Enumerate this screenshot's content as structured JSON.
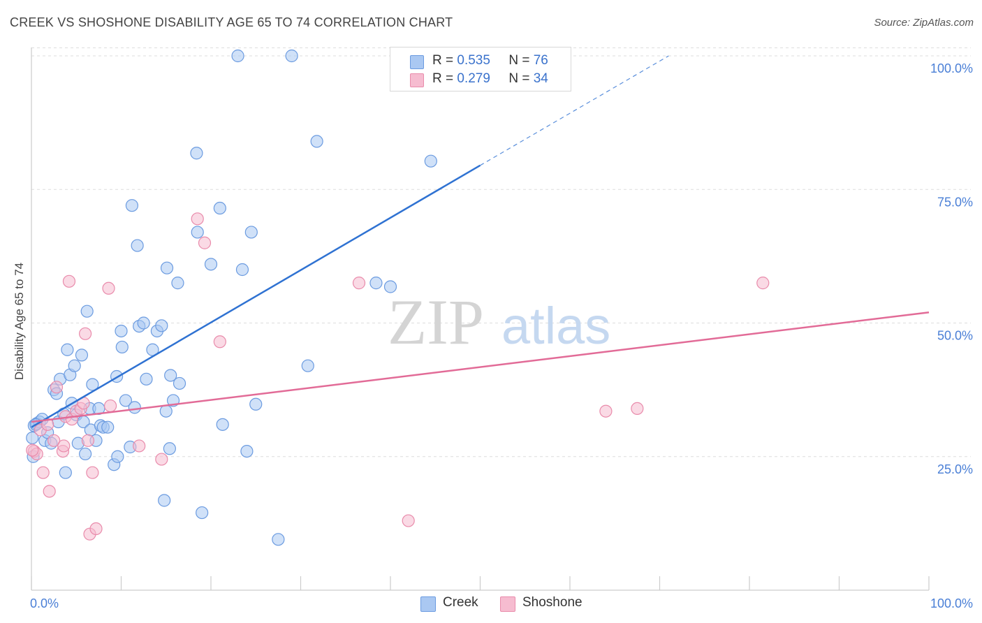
{
  "title": "CREEK VS SHOSHONE DISABILITY AGE 65 TO 74 CORRELATION CHART",
  "source": "Source: ZipAtlas.com",
  "watermark": {
    "zip": "ZIP",
    "atlas": "atlas"
  },
  "colors": {
    "creek_fill": "#aac8f2",
    "creek_stroke": "#6b9be0",
    "creek_line": "#2f72d2",
    "shoshone_fill": "#f6bcd0",
    "shoshone_stroke": "#e98bab",
    "shoshone_line": "#e26b97",
    "tick_text": "#4a7fd6",
    "grid": "#dddddd"
  },
  "legend": {
    "rows": [
      {
        "series": "Creek",
        "r_label": "R =",
        "r_value": "0.535",
        "n_label": "N =",
        "n_value": "76"
      },
      {
        "series": "Shoshone",
        "r_label": "R =",
        "r_value": "0.279",
        "n_label": "N =",
        "n_value": "34"
      }
    ]
  },
  "bottom_legend": [
    {
      "label": "Creek"
    },
    {
      "label": "Shoshone"
    }
  ],
  "chart_data": {
    "type": "scatter",
    "title": "CREEK VS SHOSHONE DISABILITY AGE 65 TO 74 CORRELATION CHART",
    "xlabel": "",
    "ylabel": "Disability Age 65 to 74",
    "xlim": [
      0,
      100
    ],
    "ylim": [
      0,
      102
    ],
    "x_tick_labels": [
      {
        "value": 0,
        "label": "0.0%"
      },
      {
        "value": 100,
        "label": "100.0%"
      }
    ],
    "y_tick_labels": [
      {
        "value": 25,
        "label": "25.0%"
      },
      {
        "value": 50,
        "label": "50.0%"
      },
      {
        "value": 75,
        "label": "75.0%"
      },
      {
        "value": 100,
        "label": "100.0%"
      }
    ],
    "grid": true,
    "series": [
      {
        "name": "Creek",
        "r": 0.535,
        "n": 76,
        "trend": {
          "x0": 0,
          "y0": 30.5,
          "x1": 50,
          "y1": 79.5,
          "dash_x1": 71,
          "dash_y1": 100
        },
        "points": [
          [
            0.3,
            30.8
          ],
          [
            0.6,
            31.2
          ],
          [
            0.9,
            31.5
          ],
          [
            1.2,
            32.0
          ],
          [
            1.5,
            28.0
          ],
          [
            1.8,
            29.5
          ],
          [
            2.2,
            27.5
          ],
          [
            2.5,
            37.5
          ],
          [
            2.8,
            36.8
          ],
          [
            3.0,
            31.5
          ],
          [
            3.2,
            39.5
          ],
          [
            3.6,
            33.0
          ],
          [
            3.8,
            22.0
          ],
          [
            4.0,
            45.0
          ],
          [
            4.3,
            40.3
          ],
          [
            4.5,
            35.0
          ],
          [
            4.8,
            42.0
          ],
          [
            5.0,
            32.8
          ],
          [
            5.2,
            27.5
          ],
          [
            5.6,
            44.0
          ],
          [
            5.8,
            31.5
          ],
          [
            6.0,
            25.5
          ],
          [
            6.2,
            52.2
          ],
          [
            6.5,
            34.0
          ],
          [
            6.6,
            30.0
          ],
          [
            6.8,
            38.5
          ],
          [
            7.2,
            28.0
          ],
          [
            7.5,
            34.0
          ],
          [
            7.7,
            30.8
          ],
          [
            8.0,
            30.5
          ],
          [
            8.5,
            30.5
          ],
          [
            9.2,
            23.5
          ],
          [
            9.5,
            40.0
          ],
          [
            9.6,
            25.0
          ],
          [
            10.0,
            48.5
          ],
          [
            10.1,
            45.5
          ],
          [
            10.5,
            35.5
          ],
          [
            11.0,
            26.8
          ],
          [
            11.2,
            72.0
          ],
          [
            11.5,
            34.2
          ],
          [
            11.8,
            64.5
          ],
          [
            12.0,
            49.4
          ],
          [
            12.5,
            50.0
          ],
          [
            12.8,
            39.5
          ],
          [
            13.5,
            45.0
          ],
          [
            14.0,
            48.5
          ],
          [
            14.5,
            49.5
          ],
          [
            14.8,
            16.8
          ],
          [
            15.0,
            33.5
          ],
          [
            15.1,
            60.3
          ],
          [
            15.4,
            26.5
          ],
          [
            15.5,
            40.2
          ],
          [
            15.8,
            35.5
          ],
          [
            16.3,
            57.5
          ],
          [
            16.5,
            38.7
          ],
          [
            18.4,
            81.8
          ],
          [
            18.5,
            67.0
          ],
          [
            19.0,
            14.5
          ],
          [
            20.0,
            61.0
          ],
          [
            21.0,
            71.5
          ],
          [
            21.3,
            31.0
          ],
          [
            23.0,
            100.0
          ],
          [
            23.5,
            60.0
          ],
          [
            24.0,
            26.0
          ],
          [
            24.5,
            67.0
          ],
          [
            25.0,
            34.8
          ],
          [
            27.5,
            9.5
          ],
          [
            29.0,
            100.0
          ],
          [
            30.8,
            42.0
          ],
          [
            31.8,
            84.0
          ],
          [
            38.4,
            57.5
          ],
          [
            40.0,
            56.8
          ],
          [
            44.5,
            80.3
          ],
          [
            0.1,
            28.5
          ],
          [
            0.2,
            25.0
          ],
          [
            0.5,
            31.0
          ]
        ]
      },
      {
        "name": "Shoshone",
        "r": 0.279,
        "n": 34,
        "trend": {
          "x0": 0,
          "y0": 31.5,
          "x1": 100,
          "y1": 52.0
        },
        "points": [
          [
            0.3,
            26.0
          ],
          [
            0.6,
            25.5
          ],
          [
            1.0,
            30.0
          ],
          [
            1.3,
            22.0
          ],
          [
            1.8,
            31.0
          ],
          [
            2.0,
            18.5
          ],
          [
            2.5,
            28.0
          ],
          [
            2.8,
            38.0
          ],
          [
            3.5,
            26.0
          ],
          [
            3.6,
            27.0
          ],
          [
            3.8,
            32.5
          ],
          [
            4.2,
            57.8
          ],
          [
            4.5,
            32.0
          ],
          [
            5.0,
            33.5
          ],
          [
            5.5,
            34.0
          ],
          [
            5.8,
            35.0
          ],
          [
            6.0,
            48.0
          ],
          [
            6.3,
            28.0
          ],
          [
            6.5,
            10.5
          ],
          [
            6.8,
            22.0
          ],
          [
            7.2,
            11.5
          ],
          [
            8.6,
            56.5
          ],
          [
            8.8,
            34.5
          ],
          [
            12.0,
            27.0
          ],
          [
            14.5,
            24.5
          ],
          [
            18.5,
            69.5
          ],
          [
            19.3,
            65.0
          ],
          [
            21.0,
            46.5
          ],
          [
            36.5,
            57.5
          ],
          [
            42.0,
            13.0
          ],
          [
            64.0,
            33.5
          ],
          [
            67.5,
            34.0
          ],
          [
            81.5,
            57.5
          ],
          [
            0.1,
            26.2
          ]
        ]
      }
    ]
  }
}
